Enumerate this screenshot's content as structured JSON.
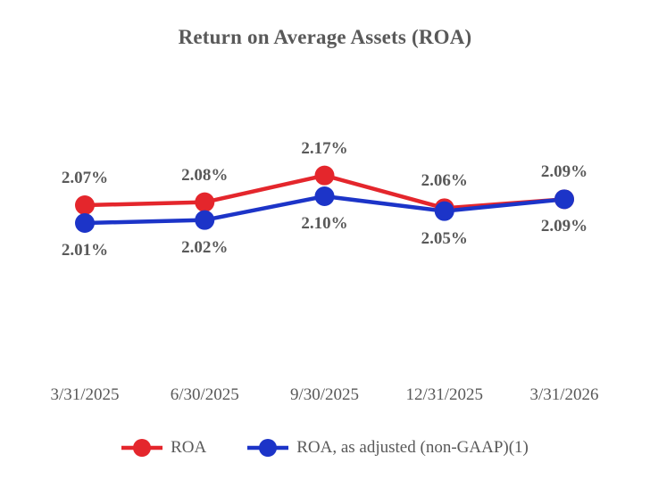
{
  "chart_data": {
    "type": "line",
    "title": "Return on Average Assets (ROA)",
    "categories": [
      "3/31/2025",
      "6/30/2025",
      "9/30/2025",
      "12/31/2025",
      "3/31/2026"
    ],
    "series": [
      {
        "name": "ROA",
        "color": "#e4262c",
        "values": [
          2.07,
          2.08,
          2.17,
          2.06,
          2.09
        ],
        "data_labels": [
          "2.07%",
          "2.08%",
          "2.17%",
          "2.06%",
          "2.09%"
        ],
        "label_position": "above"
      },
      {
        "name": "ROA, as adjusted (non-GAAP)(1)",
        "color": "#1c34c8",
        "values": [
          2.01,
          2.02,
          2.1,
          2.05,
          2.09
        ],
        "data_labels": [
          "2.01%",
          "2.02%",
          "2.10%",
          "2.05%",
          "2.09%"
        ],
        "label_position": "below"
      }
    ],
    "xlabel": "",
    "ylabel": "",
    "grid": false,
    "axis_lines": "none",
    "legend_position": "bottom",
    "label_color": "#595959",
    "background": "#ffffff"
  }
}
